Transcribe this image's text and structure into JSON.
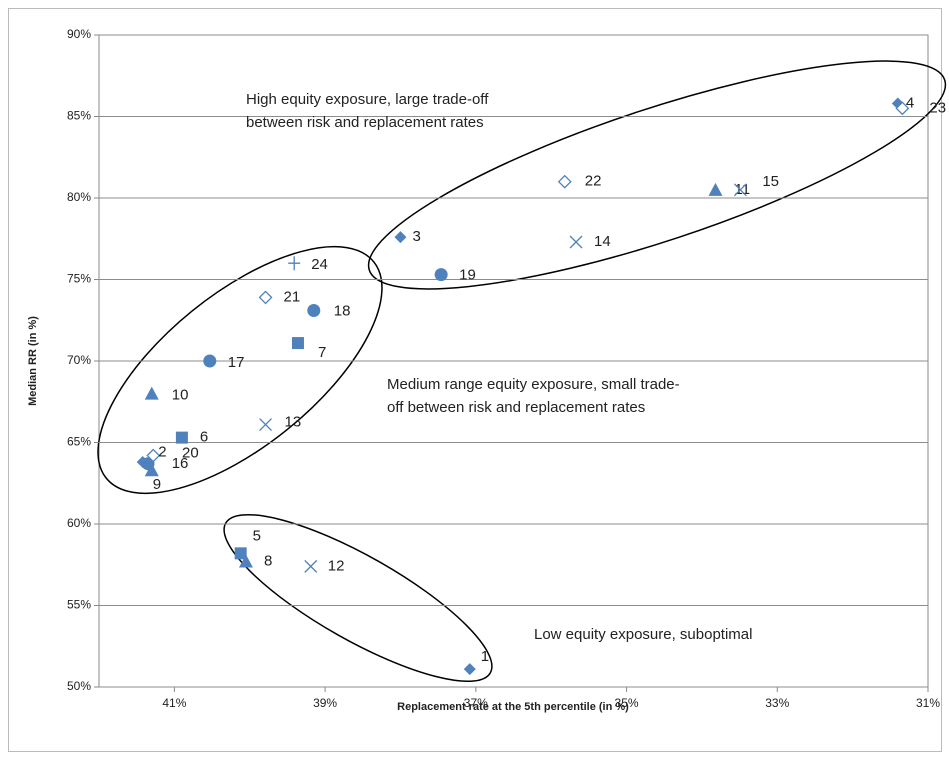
{
  "chart_data": {
    "type": "scatter",
    "xlabel": "Replacement rate at the 5th percentile (in %)",
    "ylabel": "Median RR (in %)",
    "xlim": [
      42,
      31
    ],
    "xticks": [
      {
        "value": 41,
        "label": "41%"
      },
      {
        "value": 39,
        "label": "39%"
      },
      {
        "value": 37,
        "label": "37%"
      },
      {
        "value": 35,
        "label": "35%"
      },
      {
        "value": 33,
        "label": "33%"
      },
      {
        "value": 31,
        "label": "31%"
      }
    ],
    "ylim": [
      50,
      90
    ],
    "yticks": [
      {
        "value": 50,
        "label": "50%"
      },
      {
        "value": 55,
        "label": "55%"
      },
      {
        "value": 60,
        "label": "60%"
      },
      {
        "value": 65,
        "label": "65%"
      },
      {
        "value": 70,
        "label": "70%"
      },
      {
        "value": 75,
        "label": "75%"
      },
      {
        "value": 80,
        "label": "80%"
      },
      {
        "value": 85,
        "label": "85%"
      },
      {
        "value": 90,
        "label": "90%"
      }
    ],
    "grid": true,
    "series": [
      {
        "marker": "diamond",
        "color": "#4f81bd",
        "x": [
          37.08,
          38.0,
          31.4,
          41.42
        ],
        "values": [
          51.1,
          77.6,
          85.8,
          63.8
        ],
        "labels": [
          "1",
          "3",
          "4",
          "16"
        ]
      },
      {
        "marker": "square",
        "color": "#4f81bd",
        "x": [
          40.12,
          40.9,
          39.36
        ],
        "values": [
          58.2,
          65.3,
          71.1
        ],
        "labels": [
          "5",
          "6",
          "7"
        ]
      },
      {
        "marker": "triangle",
        "color": "#4f81bd",
        "x": [
          40.05,
          41.3,
          41.3,
          33.82
        ],
        "values": [
          57.7,
          63.3,
          68.0,
          80.5
        ],
        "labels": [
          "8",
          "9",
          "10",
          "11"
        ]
      },
      {
        "marker": "cross",
        "color": "#4f81bd",
        "x": [
          39.19,
          39.79,
          35.67,
          33.49
        ],
        "values": [
          57.4,
          66.1,
          77.3,
          80.5
        ],
        "labels": [
          "12",
          "13",
          "14",
          "15"
        ]
      },
      {
        "marker": "circle",
        "color": "#4f81bd",
        "x": [
          40.53,
          39.15,
          37.46,
          41.35
        ],
        "values": [
          70.0,
          73.1,
          75.3,
          63.7
        ],
        "labels": [
          "17",
          "18",
          "19",
          "20"
        ]
      },
      {
        "marker": "open-diamond",
        "color": "#4f81bd",
        "x": [
          41.28,
          39.79,
          35.82,
          31.34
        ],
        "values": [
          64.2,
          73.9,
          81.0,
          85.5
        ],
        "labels": [
          "2",
          "21",
          "22",
          "23"
        ]
      },
      {
        "marker": "plus",
        "color": "#4f81bd",
        "x": [
          39.41
        ],
        "values": [
          76.0
        ],
        "labels": [
          "24"
        ]
      }
    ],
    "annotations": [
      {
        "lines": [
          "High equity exposure, large trade-off",
          "between risk and replacement rates"
        ]
      },
      {
        "lines": [
          "Medium range equity exposure, small trade-",
          "off between risk and replacement rates"
        ]
      },
      {
        "lines": [
          "Low equity exposure, suboptimal"
        ]
      }
    ]
  }
}
